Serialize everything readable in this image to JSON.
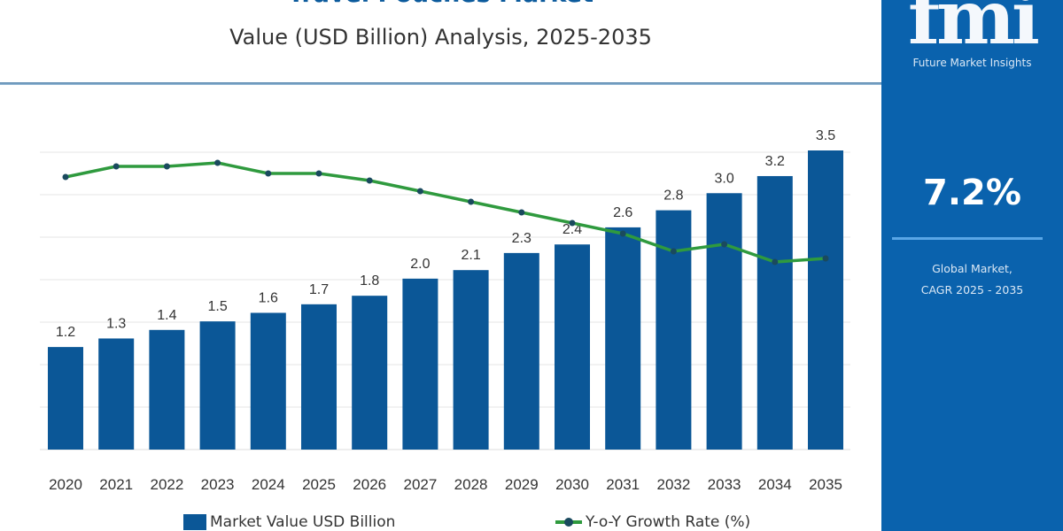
{
  "header": {
    "title": "Travel Pouches Market",
    "subtitle": "Value (USD Billion) Analysis, 2025-2035"
  },
  "panel": {
    "logo": "fmi",
    "logo_sub": "Future Market Insights",
    "cagr": "7.2%",
    "cagr_label_1": "Global Market,",
    "cagr_label_2": "CAGR 2025 - 2035"
  },
  "colors": {
    "bar": "#0b5797",
    "line": "#2f9a3e",
    "marker": "#1a4a5e",
    "panel": "#0a62ad"
  },
  "chart_data": {
    "type": "bar",
    "categories": [
      "2020",
      "2021",
      "2022",
      "2023",
      "2024",
      "2025",
      "2026",
      "2027",
      "2028",
      "2029",
      "2030",
      "2031",
      "2032",
      "2033",
      "2034",
      "2035"
    ],
    "series": [
      {
        "name": "Market Value USD Billion",
        "type": "bar",
        "values": [
          1.2,
          1.3,
          1.4,
          1.5,
          1.6,
          1.7,
          1.8,
          2.0,
          2.1,
          2.3,
          2.4,
          2.6,
          2.8,
          3.0,
          3.2,
          3.5
        ],
        "labels": [
          "1.2",
          "1.3",
          "1.4",
          "1.5",
          "1.6",
          "1.7",
          "1.8",
          "2.0",
          "2.1",
          "2.3",
          "2.4",
          "2.6",
          "2.8",
          "3.0",
          "3.2",
          "3.5"
        ]
      },
      {
        "name": "Y-o-Y Growth Rate (%)",
        "type": "line",
        "values": [
          8.2,
          8.5,
          8.5,
          8.6,
          8.3,
          8.3,
          8.1,
          7.8,
          7.5,
          7.2,
          6.9,
          6.6,
          6.1,
          6.3,
          5.8,
          5.9
        ]
      }
    ],
    "ylim": [
      0,
      3.5
    ],
    "grid": true,
    "legend": "bottom"
  }
}
